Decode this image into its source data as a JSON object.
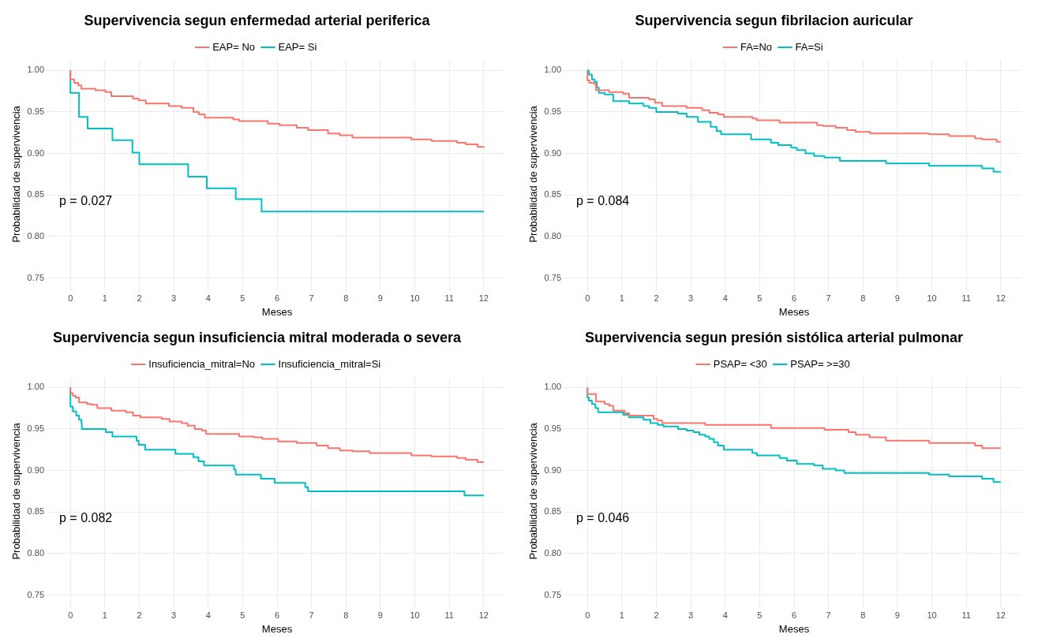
{
  "chart_data": [
    {
      "type": "step",
      "title": "Supervivencia segun enfermedad arterial periferica",
      "xlabel": "Meses",
      "ylabel": "Probabilidad de supervivencia",
      "legend": "top",
      "grid": true,
      "xlim": [
        -0.6,
        12.6
      ],
      "ylim": [
        0.738,
        1.012
      ],
      "xticks": [
        0,
        1,
        2,
        3,
        4,
        5,
        6,
        7,
        8,
        9,
        10,
        11,
        12
      ],
      "yticks": [
        {
          "value": 0.75,
          "label": "0.75"
        },
        {
          "value": 0.8,
          "label": "0.80"
        },
        {
          "value": 0.85,
          "label": "0.85"
        },
        {
          "value": 0.9,
          "label": "0.90"
        },
        {
          "value": 0.95,
          "label": "0.95"
        },
        {
          "value": 1,
          "label": "1.00"
        }
      ],
      "annotations": [
        "p = 0.027"
      ],
      "series": [
        {
          "name": "EAP= No",
          "color": "#f8766d",
          "x": [
            0,
            0,
            0.11,
            0.23,
            0.32,
            0.73,
            1.02,
            1.19,
            1.82,
            1.98,
            2.19,
            2.86,
            3.23,
            3.57,
            3.73,
            3.9,
            4.73,
            4.9,
            5.73,
            6.07,
            6.57,
            6.9,
            7.48,
            7.82,
            8.19,
            9.9,
            10.48,
            11.23,
            11.48,
            11.82,
            12
          ],
          "values": [
            1,
            0.989,
            0.985,
            0.982,
            0.978,
            0.976,
            0.974,
            0.969,
            0.966,
            0.964,
            0.96,
            0.957,
            0.955,
            0.95,
            0.947,
            0.943,
            0.941,
            0.939,
            0.936,
            0.934,
            0.931,
            0.928,
            0.924,
            0.922,
            0.919,
            0.917,
            0.915,
            0.913,
            0.911,
            0.908,
            0.907
          ]
        },
        {
          "name": "EAP= Si",
          "color": "#00bfc4",
          "x": [
            0,
            0,
            0.25,
            0.5,
            1.22,
            1.8,
            2.0,
            3.42,
            3.96,
            4.8,
            5.55,
            12
          ],
          "values": [
            1,
            0.973,
            0.944,
            0.93,
            0.916,
            0.901,
            0.887,
            0.872,
            0.858,
            0.845,
            0.83,
            0.83
          ]
        }
      ]
    },
    {
      "type": "step",
      "title": "Supervivencia segun fibrilacion auricular",
      "xlabel": "Meses",
      "ylabel": "Probabilidad de supervivencia",
      "legend": "top",
      "grid": true,
      "xlim": [
        -0.6,
        12.6
      ],
      "ylim": [
        0.738,
        1.012
      ],
      "xticks": [
        0,
        1,
        2,
        3,
        4,
        5,
        6,
        7,
        8,
        9,
        10,
        11,
        12
      ],
      "yticks": [
        {
          "value": 0.75,
          "label": "0.75"
        },
        {
          "value": 0.8,
          "label": "0.80"
        },
        {
          "value": 0.85,
          "label": "0.85"
        },
        {
          "value": 0.9,
          "label": "0.90"
        },
        {
          "value": 0.95,
          "label": "0.95"
        },
        {
          "value": 1,
          "label": "1.00"
        }
      ],
      "annotations": [
        "p = 0.084"
      ],
      "series": [
        {
          "name": "FA=No",
          "color": "#f8766d",
          "x": [
            0,
            0,
            0.06,
            0.21,
            0.25,
            0.63,
            1.04,
            1.21,
            1.79,
            1.96,
            2.17,
            2.88,
            3.33,
            3.54,
            3.79,
            3.96,
            4.79,
            4.92,
            5.58,
            6.67,
            6.83,
            7.21,
            7.54,
            7.79,
            8.21,
            9.92,
            10.5,
            11.25,
            11.46,
            11.88,
            12
          ],
          "values": [
            1,
            0.988,
            0.985,
            0.983,
            0.976,
            0.974,
            0.972,
            0.967,
            0.965,
            0.961,
            0.957,
            0.955,
            0.952,
            0.949,
            0.947,
            0.944,
            0.942,
            0.94,
            0.937,
            0.934,
            0.933,
            0.931,
            0.928,
            0.926,
            0.924,
            0.923,
            0.921,
            0.918,
            0.917,
            0.914,
            0.914
          ]
        },
        {
          "name": "FA=Si",
          "color": "#00bfc4",
          "x": [
            0,
            0.04,
            0.13,
            0.21,
            0.27,
            0.33,
            0.5,
            0.75,
            1.21,
            1.63,
            1.79,
            2.0,
            2.63,
            2.88,
            3.21,
            3.58,
            3.75,
            3.88,
            4.75,
            5.33,
            5.54,
            5.92,
            6.08,
            6.33,
            6.58,
            6.88,
            7.33,
            8.67,
            9.92,
            11.46,
            11.79,
            12
          ],
          "values": [
            1,
            0.995,
            0.989,
            0.986,
            0.979,
            0.973,
            0.971,
            0.963,
            0.96,
            0.957,
            0.955,
            0.95,
            0.948,
            0.944,
            0.938,
            0.932,
            0.927,
            0.923,
            0.917,
            0.913,
            0.91,
            0.907,
            0.904,
            0.9,
            0.897,
            0.895,
            0.891,
            0.888,
            0.885,
            0.882,
            0.878,
            0.878
          ]
        }
      ]
    },
    {
      "type": "step",
      "title": "Supervivencia segun insuficiencia mitral moderada o severa",
      "xlabel": "Meses",
      "ylabel": "Probabilidad de supervivencia",
      "legend": "top",
      "grid": true,
      "xlim": [
        -0.6,
        12.6
      ],
      "ylim": [
        0.738,
        1.012
      ],
      "xticks": [
        0,
        1,
        2,
        3,
        4,
        5,
        6,
        7,
        8,
        9,
        10,
        11,
        12
      ],
      "yticks": [
        {
          "value": 0.75,
          "label": "0.75"
        },
        {
          "value": 0.8,
          "label": "0.80"
        },
        {
          "value": 0.85,
          "label": "0.85"
        },
        {
          "value": 0.9,
          "label": "0.90"
        },
        {
          "value": 0.95,
          "label": "0.95"
        },
        {
          "value": 1,
          "label": "1.00"
        }
      ],
      "annotations": [
        "p = 0.082"
      ],
      "series": [
        {
          "name": "Insuficiencia_mitral=No",
          "color": "#f8766d",
          "x": [
            0,
            0,
            0.07,
            0.15,
            0.25,
            0.48,
            0.61,
            0.78,
            1.19,
            1.61,
            1.82,
            2.03,
            2.65,
            2.88,
            3.23,
            3.4,
            3.61,
            3.82,
            3.94,
            4.9,
            5.32,
            5.57,
            6.03,
            6.57,
            7.15,
            7.48,
            7.82,
            8.19,
            8.69,
            9.9,
            10.48,
            11.23,
            11.48,
            11.82,
            12
          ],
          "values": [
            1,
            0.993,
            0.99,
            0.988,
            0.982,
            0.98,
            0.979,
            0.975,
            0.972,
            0.97,
            0.966,
            0.964,
            0.962,
            0.959,
            0.957,
            0.954,
            0.95,
            0.948,
            0.944,
            0.941,
            0.94,
            0.938,
            0.935,
            0.933,
            0.93,
            0.927,
            0.924,
            0.923,
            0.921,
            0.918,
            0.917,
            0.915,
            0.913,
            0.91,
            0.91
          ]
        },
        {
          "name": "Insuficiencia_mitral=Si",
          "color": "#00bfc4",
          "x": [
            0,
            0,
            0.07,
            0.17,
            0.25,
            0.32,
            0.33,
            1.03,
            1.22,
            1.92,
            1.98,
            2.17,
            3.05,
            3.57,
            3.72,
            3.88,
            4.75,
            4.8,
            5.53,
            5.93,
            6.82,
            6.9,
            11.44,
            12
          ],
          "values": [
            1,
            0.977,
            0.971,
            0.966,
            0.961,
            0.957,
            0.95,
            0.946,
            0.941,
            0.936,
            0.931,
            0.925,
            0.92,
            0.916,
            0.911,
            0.906,
            0.901,
            0.895,
            0.89,
            0.885,
            0.88,
            0.875,
            0.87,
            0.87
          ]
        }
      ]
    },
    {
      "type": "step",
      "title": "Supervivencia segun presión sistólica arterial pulmonar",
      "xlabel": "Meses",
      "ylabel": "Probabilidad de supervivencia",
      "legend": "top",
      "grid": true,
      "xlim": [
        -0.6,
        12.6
      ],
      "ylim": [
        0.738,
        1.012
      ],
      "xticks": [
        0,
        1,
        2,
        3,
        4,
        5,
        6,
        7,
        8,
        9,
        10,
        11,
        12
      ],
      "yticks": [
        {
          "value": 0.75,
          "label": "0.75"
        },
        {
          "value": 0.8,
          "label": "0.80"
        },
        {
          "value": 0.85,
          "label": "0.85"
        },
        {
          "value": 0.9,
          "label": "0.90"
        },
        {
          "value": 0.95,
          "label": "0.95"
        },
        {
          "value": 1,
          "label": "1.00"
        }
      ],
      "annotations": [
        "p = 0.046"
      ],
      "series": [
        {
          "name": "PSAP= <30",
          "color": "#f8766d",
          "x": [
            0,
            0,
            0.25,
            0.5,
            0.63,
            0.75,
            1.08,
            1.21,
            1.92,
            2.04,
            2.17,
            3.42,
            5.33,
            6.88,
            7.58,
            7.79,
            8.19,
            8.67,
            9.92,
            11.25,
            11.46,
            12
          ],
          "values": [
            1,
            0.992,
            0.983,
            0.98,
            0.978,
            0.972,
            0.969,
            0.966,
            0.962,
            0.96,
            0.957,
            0.955,
            0.951,
            0.949,
            0.946,
            0.943,
            0.94,
            0.936,
            0.933,
            0.93,
            0.927,
            0.927
          ]
        },
        {
          "name": "PSAP= >=30",
          "color": "#00bfc4",
          "x": [
            0,
            0,
            0.04,
            0.13,
            0.23,
            0.31,
            1.04,
            1.21,
            1.63,
            1.83,
            2.04,
            2.21,
            2.63,
            2.88,
            3.08,
            3.25,
            3.42,
            3.54,
            3.67,
            3.79,
            3.96,
            4.79,
            4.92,
            5.58,
            5.79,
            6.08,
            6.58,
            6.83,
            7.21,
            7.46,
            9.92,
            10.5,
            11.46,
            11.79,
            12
          ],
          "values": [
            1,
            0.988,
            0.984,
            0.98,
            0.975,
            0.97,
            0.967,
            0.964,
            0.961,
            0.957,
            0.955,
            0.953,
            0.95,
            0.948,
            0.946,
            0.943,
            0.941,
            0.938,
            0.934,
            0.93,
            0.925,
            0.921,
            0.918,
            0.915,
            0.912,
            0.908,
            0.906,
            0.902,
            0.9,
            0.897,
            0.895,
            0.893,
            0.89,
            0.886,
            0.886
          ]
        }
      ]
    }
  ]
}
